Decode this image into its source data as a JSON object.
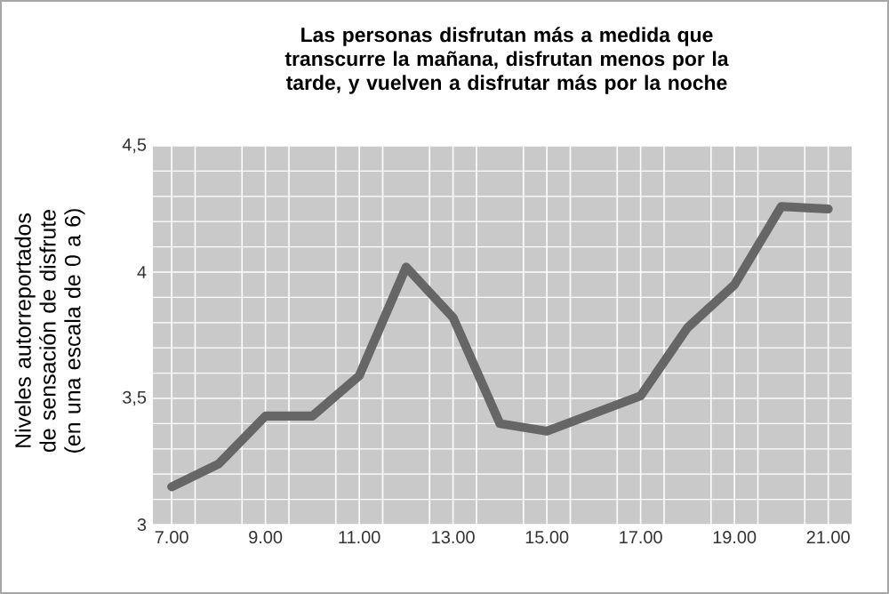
{
  "chart_data": {
    "type": "line",
    "title": "Las personas disfrutan más a medida que transcurre la mañana, disfrutan menos por la tarde, y vuelven a disfrutar más por la noche",
    "ylabel": "Niveles autorreportados de sensación de disfrute (en una escala de 0 a 6)",
    "x": [
      7,
      8,
      9,
      10,
      11,
      12,
      13,
      14,
      15,
      16,
      17,
      18,
      19,
      20,
      21
    ],
    "series": [
      {
        "color": "#666666",
        "values": [
          3.15,
          3.24,
          3.43,
          3.43,
          3.59,
          4.02,
          3.82,
          3.4,
          3.37,
          3.44,
          3.51,
          3.78,
          3.95,
          4.26,
          4.25
        ]
      }
    ],
    "xlim": [
      6.6,
      21.5
    ],
    "xticks": [
      {
        "value": 7,
        "label": "7.00"
      },
      {
        "value": 9,
        "label": "9.00"
      },
      {
        "value": 11,
        "label": "11.00"
      },
      {
        "value": 13,
        "label": "13.00"
      },
      {
        "value": 15,
        "label": "15.00"
      },
      {
        "value": 17,
        "label": "17.00"
      },
      {
        "value": 19,
        "label": "19.00"
      },
      {
        "value": 21,
        "label": "21.00"
      }
    ],
    "ylim": [
      3,
      4.5
    ],
    "yticks": [
      3,
      {
        "value": 3.5,
        "label": "3,5"
      },
      4,
      {
        "value": 4.5,
        "label": "4,5"
      }
    ],
    "grid": true,
    "marker": "none",
    "line_style": "solid"
  }
}
